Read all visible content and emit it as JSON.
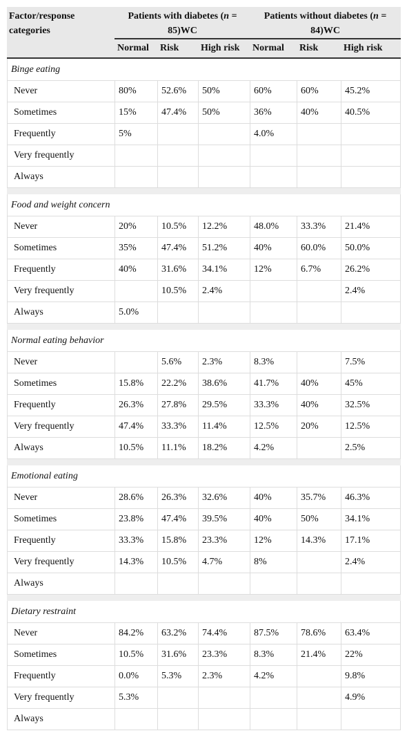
{
  "header": {
    "factor": "Factor/response categories",
    "groups": [
      {
        "before": "Patients with diabetes (",
        "italic": "n",
        "after": " = 85)WC"
      },
      {
        "before": "Patients without diabetes (",
        "italic": "n",
        "after": " = 84)WC"
      }
    ],
    "subheaders": [
      "Normal",
      "Risk",
      "High risk",
      "Normal",
      "Risk",
      "High risk"
    ]
  },
  "sections": [
    {
      "title": "Binge eating",
      "rows": [
        {
          "label": "Never",
          "cells": [
            "80%",
            "52.6%",
            "50%",
            "60%",
            "60%",
            "45.2%"
          ]
        },
        {
          "label": "Sometimes",
          "cells": [
            "15%",
            "47.4%",
            "50%",
            "36%",
            "40%",
            "40.5%"
          ]
        },
        {
          "label": "Frequently",
          "cells": [
            "5%",
            null,
            null,
            "4.0%",
            null,
            null
          ]
        },
        {
          "label": "Very frequently",
          "cells": [
            null,
            null,
            null,
            null,
            null,
            null
          ]
        },
        {
          "label": "Always",
          "cells": [
            null,
            null,
            null,
            null,
            null,
            null
          ]
        }
      ]
    },
    {
      "title": "Food and weight concern",
      "rows": [
        {
          "label": "Never",
          "cells": [
            "20%",
            "10.5%",
            "12.2%",
            "48.0%",
            "33.3%",
            "21.4%"
          ]
        },
        {
          "label": "Sometimes",
          "cells": [
            "35%",
            "47.4%",
            "51.2%",
            "40%",
            "60.0%",
            "50.0%"
          ]
        },
        {
          "label": "Frequently",
          "cells": [
            "40%",
            "31.6%",
            "34.1%",
            "12%",
            "6.7%",
            "26.2%"
          ]
        },
        {
          "label": "Very frequently",
          "cells": [
            null,
            "10.5%",
            "2.4%",
            null,
            null,
            "2.4%"
          ]
        },
        {
          "label": "Always",
          "cells": [
            "5.0%",
            null,
            null,
            null,
            null,
            null
          ]
        }
      ]
    },
    {
      "title": "Normal eating behavior",
      "rows": [
        {
          "label": "Never",
          "cells": [
            null,
            "5.6%",
            "2.3%",
            "8.3%",
            null,
            "7.5%"
          ]
        },
        {
          "label": "Sometimes",
          "cells": [
            "15.8%",
            "22.2%",
            "38.6%",
            "41.7%",
            "40%",
            "45%"
          ]
        },
        {
          "label": "Frequently",
          "cells": [
            "26.3%",
            "27.8%",
            "29.5%",
            "33.3%",
            "40%",
            "32.5%"
          ]
        },
        {
          "label": "Very frequently",
          "cells": [
            "47.4%",
            "33.3%",
            "11.4%",
            "12.5%",
            "20%",
            "12.5%"
          ]
        },
        {
          "label": "Always",
          "cells": [
            "10.5%",
            "11.1%",
            "18.2%",
            "4.2%",
            null,
            "2.5%"
          ]
        }
      ]
    },
    {
      "title": "Emotional eating",
      "rows": [
        {
          "label": "Never",
          "cells": [
            "28.6%",
            "26.3%",
            "32.6%",
            "40%",
            "35.7%",
            "46.3%"
          ]
        },
        {
          "label": "Sometimes",
          "cells": [
            "23.8%",
            "47.4%",
            "39.5%",
            "40%",
            "50%",
            "34.1%"
          ]
        },
        {
          "label": "Frequently",
          "cells": [
            "33.3%",
            "15.8%",
            "23.3%",
            "12%",
            "14.3%",
            "17.1%"
          ]
        },
        {
          "label": "Very frequently",
          "cells": [
            "14.3%",
            "10.5%",
            "4.7%",
            "8%",
            null,
            "2.4%"
          ]
        },
        {
          "label": "Always",
          "cells": [
            null,
            null,
            null,
            null,
            null,
            null
          ]
        }
      ]
    },
    {
      "title": "Dietary restraint",
      "rows": [
        {
          "label": "Never",
          "cells": [
            "84.2%",
            "63.2%",
            "74.4%",
            "87.5%",
            "78.6%",
            "63.4%"
          ]
        },
        {
          "label": "Sometimes",
          "cells": [
            "10.5%",
            "31.6%",
            "23.3%",
            "8.3%",
            "21.4%",
            "22%"
          ]
        },
        {
          "label": "Frequently",
          "cells": [
            "0.0%",
            "5.3%",
            "2.3%",
            "4.2%",
            null,
            "9.8%"
          ]
        },
        {
          "label": "Very frequently",
          "cells": [
            "5.3%",
            null,
            null,
            null,
            null,
            "4.9%"
          ]
        },
        {
          "label": "Always",
          "cells": [
            null,
            null,
            null,
            null,
            null,
            null
          ]
        }
      ]
    }
  ]
}
